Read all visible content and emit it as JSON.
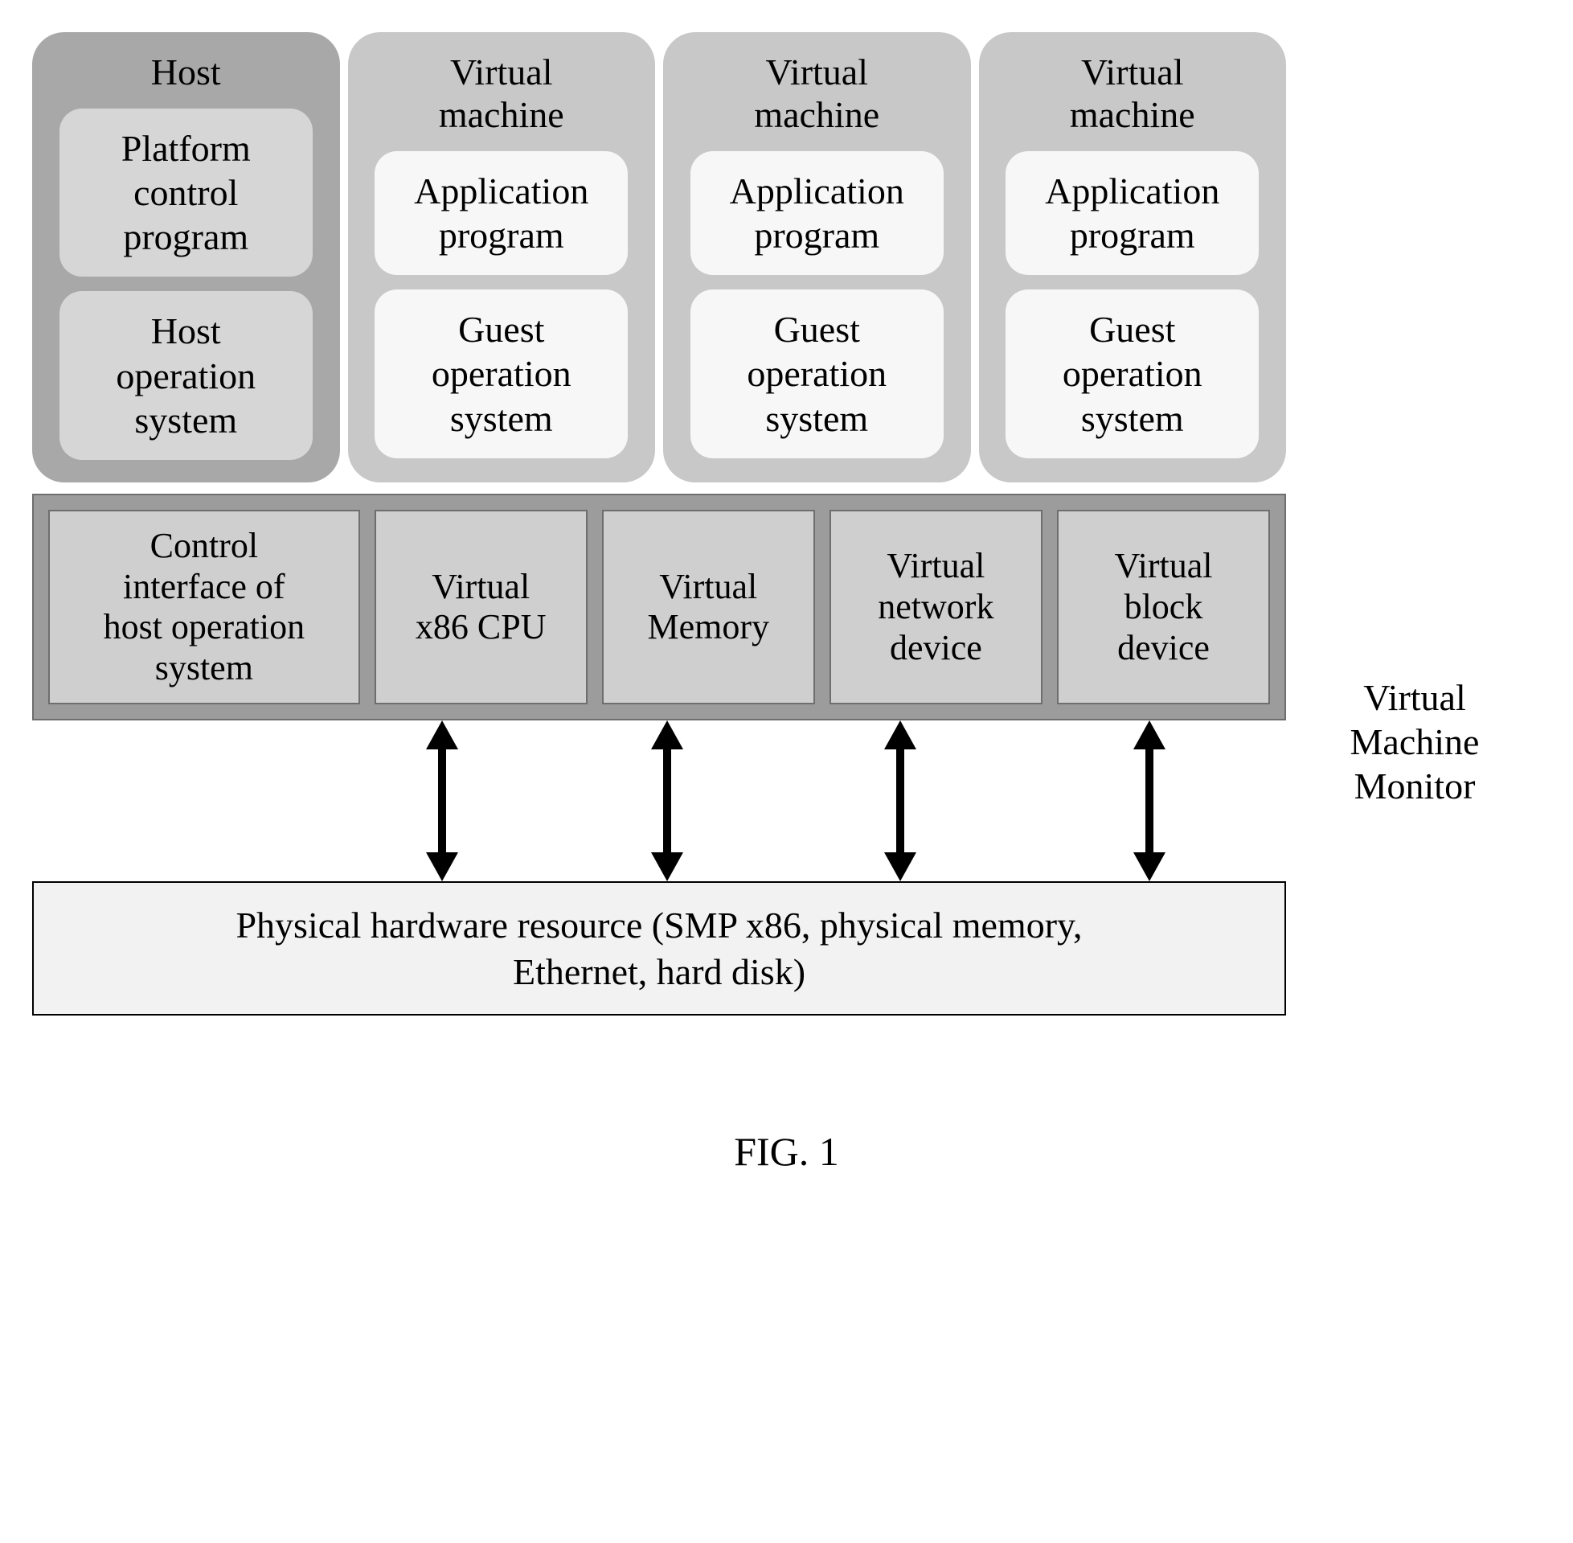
{
  "figure_caption": "FIG. 1",
  "side_label": "Virtual\nMachine\nMonitor",
  "host": {
    "title": "Host",
    "box1": "Platform\ncontrol\nprogram",
    "box2": "Host\noperation\nsystem"
  },
  "vm": {
    "title": "Virtual\nmachine",
    "box1": "Application\nprogram",
    "box2": "Guest\noperation\nsystem"
  },
  "vmm": {
    "cells": [
      "Control\ninterface of\nhost operation\nsystem",
      "Virtual\nx86 CPU",
      "Virtual\nMemory",
      "Virtual\nnetwork\ndevice",
      "Virtual\nblock\ndevice"
    ]
  },
  "hardware": "Physical hardware resource (SMP x86, physical memory,\nEthernet, hard disk)",
  "colors": {
    "host_bg": "#a8a8a8",
    "vm_bg": "#c8c8c8",
    "host_inner_bg": "#d6d6d6",
    "vm_inner_bg": "#f7f7f7",
    "vmm_bar_bg": "#9c9c9c",
    "vmm_cell_bg": "#cfcfcf",
    "hw_bg": "#f2f2f2",
    "arrow": "#000000"
  },
  "layout": {
    "arrow_x_positions": [
      490,
      770,
      1060,
      1370
    ]
  }
}
